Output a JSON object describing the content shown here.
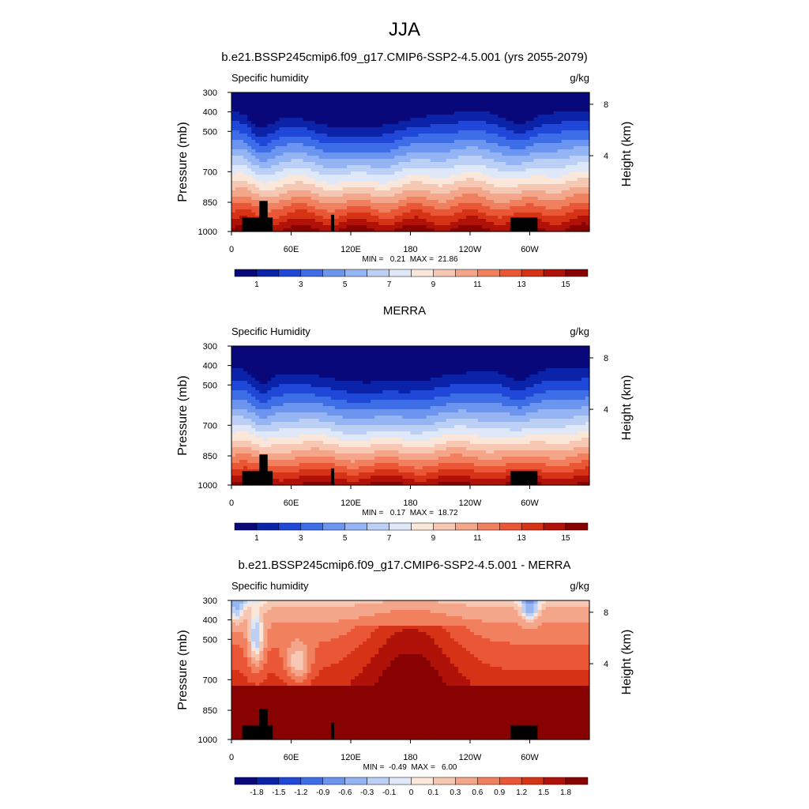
{
  "figure": {
    "title": "JJA"
  },
  "colormap": [
    "#08087a",
    "#0b23a8",
    "#1f48d8",
    "#3d6ee8",
    "#6c95ef",
    "#95b4f3",
    "#bcd0f6",
    "#dfe8f8",
    "#fbe6da",
    "#f6c8b3",
    "#f4a68a",
    "#f1805f",
    "#ea5736",
    "#d53216",
    "#b01209",
    "#870200"
  ],
  "chart_data": [
    {
      "type": "heatmap",
      "title": "b.e21.BSSP245cmip6.f09_g17.CMIP6-SSP2-4.5.001 (yrs 2055-2079)",
      "field_label": "Specific humidity",
      "units": "g/kg",
      "ylabel": "Pressure (mb)",
      "y2label": "Height (km)",
      "y_ticks": [
        "300",
        "400",
        "500",
        "700",
        "850",
        "1000"
      ],
      "y2_ticks": [
        "8",
        "4"
      ],
      "x_ticks": [
        "0",
        "60E",
        "120E",
        "180",
        "120W",
        "60W"
      ],
      "stats": "MIN =   0.21  MAX =  21.86",
      "colorbar_labels": [
        "1",
        "3",
        "5",
        "7",
        "9",
        "11",
        "13",
        "15"
      ],
      "zrange": [
        0.21,
        21.86
      ]
    },
    {
      "type": "heatmap",
      "title": "MERRA",
      "field_label": "Specific Humidity",
      "units": "g/kg",
      "ylabel": "Pressure (mb)",
      "y2label": "Height (km)",
      "y_ticks": [
        "300",
        "400",
        "500",
        "700",
        "850",
        "1000"
      ],
      "y2_ticks": [
        "8",
        "4"
      ],
      "x_ticks": [
        "0",
        "60E",
        "120E",
        "180",
        "120W",
        "60W"
      ],
      "stats": "MIN =   0.17  MAX =  18.72",
      "colorbar_labels": [
        "1",
        "3",
        "5",
        "7",
        "9",
        "11",
        "13",
        "15"
      ],
      "zrange": [
        0.17,
        18.72
      ]
    },
    {
      "type": "heatmap",
      "title": "b.e21.BSSP245cmip6.f09_g17.CMIP6-SSP2-4.5.001 - MERRA",
      "field_label": "Specific humidity",
      "units": "g/kg",
      "ylabel": "Pressure (mb)",
      "y2label": "Height (km)",
      "y_ticks": [
        "300",
        "400",
        "500",
        "700",
        "850",
        "1000"
      ],
      "y2_ticks": [
        "8",
        "4"
      ],
      "x_ticks": [
        "0",
        "60E",
        "120E",
        "180",
        "120W",
        "60W"
      ],
      "stats": "MIN =  -0.49  MAX =   6.00",
      "colorbar_labels": [
        "-1.8",
        "-1.5",
        "-1.2",
        "-0.9",
        "-0.6",
        "-0.3",
        "-0.1",
        "0",
        "0.1",
        "0.3",
        "0.6",
        "0.9",
        "1.2",
        "1.5",
        "1.8"
      ],
      "zrange": [
        -0.49,
        6.0
      ]
    }
  ]
}
